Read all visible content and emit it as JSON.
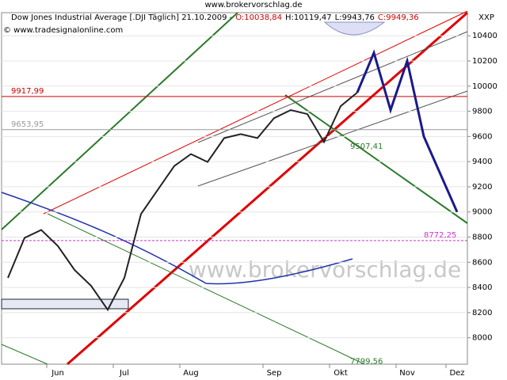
{
  "chart_data": {
    "type": "line",
    "source": "www.brokervorschlag.de",
    "title": "Dow Jones Industrial Average [.DJI  Täglich] 21.10.2009 -",
    "ohlc": [
      "O:10038,84",
      "H:10119,47",
      "L:9943,76",
      "C:9949,36"
    ],
    "copyright": "© www.tradesignalonline.com",
    "axis_label": "XXP",
    "watermark": "www.brokervorschlag.de",
    "categories": [
      null,
      null,
      null,
      "Jun",
      null,
      null,
      null,
      "Jul",
      null,
      null,
      null,
      "Aug",
      null,
      null,
      null,
      null,
      "Sep",
      null,
      null,
      null,
      "Okt",
      null,
      null,
      null,
      "Nov",
      null,
      null,
      "Dez"
    ],
    "series": [
      {
        "color": "#222222",
        "values": [
          8476,
          8794,
          8857,
          8730,
          8540,
          8413,
          8222,
          8476,
          8984,
          9175,
          9365,
          9460,
          9397,
          9587,
          9619,
          9587,
          9746,
          9810,
          9778,
          9556,
          9841,
          9949.36,
          null,
          null,
          null,
          null,
          null,
          null
        ]
      },
      {
        "color": "#1a1a8c",
        "values": [
          null,
          null,
          null,
          null,
          null,
          null,
          null,
          null,
          null,
          null,
          null,
          null,
          null,
          null,
          null,
          null,
          null,
          null,
          null,
          null,
          null,
          9949.36,
          10265,
          9810,
          10200,
          9600,
          9300,
          9000
        ]
      }
    ],
    "levels": [
      {
        "value": 9917.99,
        "label": "9917,99",
        "color": "#cc0000",
        "line": true
      },
      {
        "value": 9653.95,
        "label": "9653,95",
        "color": "#999999",
        "line": true
      },
      {
        "value": 8772.25,
        "label": "8772,25",
        "color": "#cc33cc",
        "line": true
      },
      {
        "value": 9507.41,
        "label": "9507,41",
        "color": "#2a7a2a",
        "line": false
      },
      {
        "value": 7799.56,
        "label": "7799,56",
        "color": "#2a7a2a",
        "line": false
      }
    ],
    "ylim": [
      7790,
      10584
    ],
    "yticks": [
      8000,
      8200,
      8400,
      8600,
      8800,
      9000,
      9200,
      9400,
      9600,
      9800,
      10000,
      10200,
      10400
    ],
    "grid": true
  }
}
